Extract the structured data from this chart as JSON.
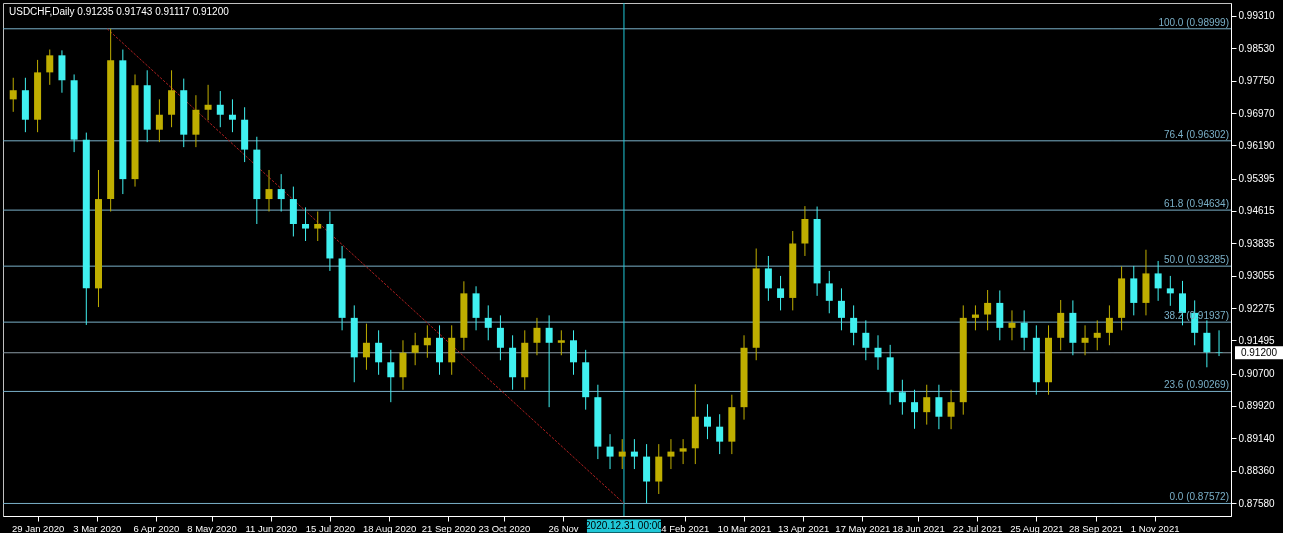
{
  "chart_data": {
    "type": "candlestick",
    "title": "USDCHF,Daily  0.91235 0.91743 0.91117 0.91200",
    "colors": [
      "#bfae00",
      "#40f0f0",
      "#bfae00",
      "#bfae00",
      "#40f0f0",
      "#40f0f0",
      "#40f0f0",
      "#bfae00",
      "#bfae00",
      "#40f0f0",
      "#bfae00",
      "#40f0f0",
      "#bfae00",
      "#bfae00",
      "#40f0f0",
      "#bfae00",
      "#bfae00",
      "#40f0f0",
      "#40f0f0",
      "#40f0f0",
      "#40f0f0",
      "#bfae00",
      "#40f0f0",
      "#40f0f0",
      "#40f0f0",
      "#bfae00",
      "#40f0f0",
      "#40f0f0",
      "#40f0f0",
      "#bfae00",
      "#40f0f0",
      "#40f0f0",
      "#bfae00",
      "#bfae00",
      "#bfae00",
      "#40f0f0",
      "#bfae00",
      "#bfae00",
      "#40f0f0",
      "#40f0f0",
      "#40f0f0",
      "#40f0f0",
      "#bfae00",
      "#bfae00",
      "#40f0f0",
      "#bfae00",
      "#40f0f0",
      "#40f0f0",
      "#40f0f0",
      "#40f0f0",
      "#bfae00",
      "#40f0f0",
      "#40f0f0",
      "#bfae00",
      "#bfae00",
      "#bfae00",
      "#bfae00",
      "#40f0f0",
      "#40f0f0",
      "#bfae00",
      "#bfae00",
      "#bfae00",
      "#40f0f0",
      "#40f0f0",
      "#bfae00",
      "#bfae00",
      "#40f0f0",
      "#40f0f0",
      "#40f0f0",
      "#40f0f0",
      "#40f0f0",
      "#40f0f0",
      "#40f0f0",
      "#40f0f0",
      "#40f0f0",
      "#bfae00",
      "#40f0f0",
      "#bfae00",
      "#bfae00",
      "#bfae00",
      "#bfae00",
      "#40f0f0",
      "#bfae00",
      "#40f0f0",
      "#40f0f0",
      "#bfae00",
      "#bfae00",
      "#40f0f0",
      "#bfae00",
      "#bfae00",
      "#bfae00",
      "#bfae00",
      "#40f0f0",
      "#bfae00",
      "#40f0f0",
      "#40f0f0",
      "#40f0f0",
      "#40f0f0",
      "#40f0f0",
      "#40f0f0"
    ],
    "x": [
      "2020-01-15",
      "2020-01-22",
      "2020-01-29",
      "2020-02-05",
      "2020-02-12",
      "2020-02-19",
      "2020-02-26",
      "2020-03-04",
      "2020-03-11",
      "2020-03-18",
      "2020-03-25",
      "2020-04-01",
      "2020-04-08",
      "2020-04-15",
      "2020-04-22",
      "2020-04-29",
      "2020-05-06",
      "2020-05-13",
      "2020-05-20",
      "2020-05-27",
      "2020-06-03",
      "2020-06-10",
      "2020-06-17",
      "2020-06-24",
      "2020-07-01",
      "2020-07-08",
      "2020-07-15",
      "2020-07-22",
      "2020-07-29",
      "2020-08-05",
      "2020-08-12",
      "2020-08-19",
      "2020-08-26",
      "2020-09-02",
      "2020-09-09",
      "2020-09-16",
      "2020-09-23",
      "2020-09-30",
      "2020-10-07",
      "2020-10-14",
      "2020-10-21",
      "2020-10-28",
      "2020-11-04",
      "2020-11-11",
      "2020-11-18",
      "2020-11-25",
      "2020-12-02",
      "2020-12-09",
      "2020-12-16",
      "2020-12-23",
      "2020-12-30",
      "2021-01-06",
      "2021-01-13",
      "2021-01-20",
      "2021-01-27",
      "2021-02-03",
      "2021-02-10",
      "2021-02-17",
      "2021-02-24",
      "2021-03-03",
      "2021-03-10",
      "2021-03-17",
      "2021-03-24",
      "2021-03-31",
      "2021-04-07",
      "2021-04-14",
      "2021-04-21",
      "2021-04-28",
      "2021-05-05",
      "2021-05-12",
      "2021-05-19",
      "2021-05-26",
      "2021-06-02",
      "2021-06-09",
      "2021-06-16",
      "2021-06-23",
      "2021-06-30",
      "2021-07-07",
      "2021-07-14",
      "2021-07-21",
      "2021-07-28",
      "2021-08-04",
      "2021-08-11",
      "2021-08-18",
      "2021-08-25",
      "2021-09-01",
      "2021-09-08",
      "2021-09-15",
      "2021-09-22",
      "2021-09-29",
      "2021-10-06",
      "2021-10-13",
      "2021-10-20",
      "2021-10-27",
      "2021-11-03",
      "2021-11-10",
      "2021-11-17",
      "2021-11-24",
      "2021-12-01",
      "2021-12-08"
    ],
    "ohlc": [
      [
        0.973,
        0.9782,
        0.97,
        0.9752
      ],
      [
        0.9752,
        0.9782,
        0.9651,
        0.9681
      ],
      [
        0.9681,
        0.9825,
        0.9651,
        0.9795
      ],
      [
        0.9795,
        0.985,
        0.9765,
        0.9836
      ],
      [
        0.9836,
        0.9848,
        0.9746,
        0.9776
      ],
      [
        0.9776,
        0.979,
        0.9603,
        0.9633
      ],
      [
        0.9633,
        0.965,
        0.9187,
        0.9275
      ],
      [
        0.9275,
        0.956,
        0.923,
        0.949
      ],
      [
        0.949,
        0.99,
        0.946,
        0.9824
      ],
      [
        0.9824,
        0.985,
        0.9502,
        0.9538
      ],
      [
        0.9538,
        0.979,
        0.952,
        0.9764
      ],
      [
        0.9764,
        0.98,
        0.9627,
        0.9657
      ],
      [
        0.9657,
        0.973,
        0.9627,
        0.9693
      ],
      [
        0.9693,
        0.98,
        0.9663,
        0.9752
      ],
      [
        0.9752,
        0.978,
        0.9615,
        0.9645
      ],
      [
        0.9645,
        0.974,
        0.9615,
        0.9705
      ],
      [
        0.9705,
        0.9765,
        0.968,
        0.9717
      ],
      [
        0.9717,
        0.975,
        0.9663,
        0.9693
      ],
      [
        0.9693,
        0.973,
        0.9651,
        0.9681
      ],
      [
        0.9681,
        0.9711,
        0.9579,
        0.9609
      ],
      [
        0.9609,
        0.964,
        0.943,
        0.949
      ],
      [
        0.949,
        0.956,
        0.946,
        0.9514
      ],
      [
        0.9514,
        0.955,
        0.946,
        0.949
      ],
      [
        0.949,
        0.952,
        0.94,
        0.943
      ],
      [
        0.943,
        0.947,
        0.9389,
        0.9419
      ],
      [
        0.9419,
        0.946,
        0.9389,
        0.943
      ],
      [
        0.943,
        0.946,
        0.9317,
        0.9347
      ],
      [
        0.9347,
        0.9377,
        0.9174,
        0.9204
      ],
      [
        0.9204,
        0.9234,
        0.9049,
        0.9109
      ],
      [
        0.9109,
        0.919,
        0.9079,
        0.9144
      ],
      [
        0.9144,
        0.9174,
        0.9067,
        0.9097
      ],
      [
        0.9097,
        0.9127,
        0.9001,
        0.9061
      ],
      [
        0.9061,
        0.915,
        0.9031,
        0.912
      ],
      [
        0.912,
        0.9168,
        0.909,
        0.9138
      ],
      [
        0.9138,
        0.9186,
        0.9108,
        0.9156
      ],
      [
        0.9156,
        0.9186,
        0.9067,
        0.9097
      ],
      [
        0.9097,
        0.9186,
        0.9067,
        0.9156
      ],
      [
        0.9156,
        0.9292,
        0.9126,
        0.9263
      ],
      [
        0.9263,
        0.928,
        0.9174,
        0.9204
      ],
      [
        0.9204,
        0.9234,
        0.915,
        0.918
      ],
      [
        0.918,
        0.921,
        0.9102,
        0.9132
      ],
      [
        0.9132,
        0.9162,
        0.9031,
        0.9061
      ],
      [
        0.9061,
        0.9174,
        0.9031,
        0.9144
      ],
      [
        0.9144,
        0.9204,
        0.9114,
        0.918
      ],
      [
        0.918,
        0.921,
        0.8989,
        0.9144
      ],
      [
        0.9144,
        0.9174,
        0.9114,
        0.915
      ],
      [
        0.915,
        0.9174,
        0.9067,
        0.9097
      ],
      [
        0.9097,
        0.9127,
        0.8983,
        0.9013
      ],
      [
        0.9013,
        0.9043,
        0.8864,
        0.8894
      ],
      [
        0.8894,
        0.8924,
        0.884,
        0.887
      ],
      [
        0.887,
        0.8912,
        0.884,
        0.8882
      ],
      [
        0.8882,
        0.8912,
        0.884,
        0.887
      ],
      [
        0.887,
        0.89,
        0.8758,
        0.881
      ],
      [
        0.881,
        0.89,
        0.878,
        0.887
      ],
      [
        0.887,
        0.8912,
        0.884,
        0.8882
      ],
      [
        0.8882,
        0.8912,
        0.8852,
        0.889
      ],
      [
        0.889,
        0.9044,
        0.8852,
        0.8966
      ],
      [
        0.8966,
        0.8996,
        0.8912,
        0.8942
      ],
      [
        0.8942,
        0.8972,
        0.8876,
        0.8906
      ],
      [
        0.8906,
        0.9019,
        0.8876,
        0.8989
      ],
      [
        0.8989,
        0.9162,
        0.8959,
        0.9132
      ],
      [
        0.9132,
        0.9371,
        0.9102,
        0.9323
      ],
      [
        0.9323,
        0.9353,
        0.9245,
        0.9275
      ],
      [
        0.9275,
        0.9305,
        0.9222,
        0.9252
      ],
      [
        0.9252,
        0.9413,
        0.9222,
        0.9383
      ],
      [
        0.9383,
        0.9473,
        0.9353,
        0.9442
      ],
      [
        0.9442,
        0.9472,
        0.9257,
        0.9287
      ],
      [
        0.9287,
        0.9317,
        0.9215,
        0.9245
      ],
      [
        0.9245,
        0.9275,
        0.9174,
        0.9204
      ],
      [
        0.9204,
        0.9234,
        0.9138,
        0.9168
      ],
      [
        0.9168,
        0.9198,
        0.9102,
        0.9132
      ],
      [
        0.9132,
        0.9162,
        0.9079,
        0.9109
      ],
      [
        0.9109,
        0.9139,
        0.8995,
        0.9025
      ],
      [
        0.9025,
        0.9055,
        0.8971,
        0.9001
      ],
      [
        0.9001,
        0.9031,
        0.8937,
        0.8977
      ],
      [
        0.8977,
        0.9043,
        0.8947,
        0.9013
      ],
      [
        0.9013,
        0.9043,
        0.8936,
        0.8966
      ],
      [
        0.8966,
        0.9031,
        0.8936,
        0.9001
      ],
      [
        0.9001,
        0.9234,
        0.8971,
        0.9204
      ],
      [
        0.9204,
        0.9234,
        0.9174,
        0.9212
      ],
      [
        0.9212,
        0.9271,
        0.9174,
        0.924
      ],
      [
        0.924,
        0.927,
        0.915,
        0.918
      ],
      [
        0.918,
        0.9222,
        0.915,
        0.9192
      ],
      [
        0.9192,
        0.9222,
        0.9126,
        0.9156
      ],
      [
        0.9156,
        0.9186,
        0.9019,
        0.9049
      ],
      [
        0.9049,
        0.9186,
        0.9019,
        0.9156
      ],
      [
        0.9156,
        0.9247,
        0.9126,
        0.9216
      ],
      [
        0.9216,
        0.9246,
        0.9114,
        0.9144
      ],
      [
        0.9144,
        0.9186,
        0.9114,
        0.9156
      ],
      [
        0.9156,
        0.9198,
        0.9126,
        0.9168
      ],
      [
        0.9168,
        0.9234,
        0.9138,
        0.9204
      ],
      [
        0.9204,
        0.9328,
        0.9174,
        0.9299
      ],
      [
        0.9299,
        0.9329,
        0.921,
        0.924
      ],
      [
        0.924,
        0.9368,
        0.921,
        0.9311
      ],
      [
        0.9311,
        0.9341,
        0.9245,
        0.9275
      ],
      [
        0.9275,
        0.9305,
        0.9233,
        0.9263
      ],
      [
        0.9263,
        0.9293,
        0.9186,
        0.9216
      ],
      [
        0.9216,
        0.9246,
        0.9138,
        0.9168
      ],
      [
        0.9168,
        0.9198,
        0.9085,
        0.9121
      ],
      [
        0.9121,
        0.9174,
        0.9112,
        0.912
      ]
    ],
    "series": [
      {
        "type": "line",
        "x": [
          "2020-03-09",
          "2020-12-31"
        ],
        "values": [
          0.98999,
          0.87572
        ],
        "color": "#b02020",
        "line_style": "dotted"
      }
    ],
    "ref_lines": [
      {
        "axis": "y",
        "value": 0.98999,
        "label": "100.0 (0.98999)",
        "color": "#7ab0c8"
      },
      {
        "axis": "y",
        "value": 0.96302,
        "label": "76.4 (0.96302)",
        "color": "#7ab0c8"
      },
      {
        "axis": "y",
        "value": 0.94634,
        "label": "61.8 (0.94634)",
        "color": "#7ab0c8"
      },
      {
        "axis": "y",
        "value": 0.93285,
        "label": "50.0 (0.93285)",
        "color": "#7ab0c8"
      },
      {
        "axis": "y",
        "value": 0.91937,
        "label": "38.2 (0.91937)",
        "color": "#7ab0c8"
      },
      {
        "axis": "y",
        "value": 0.90269,
        "label": "23.6 (0.90269)",
        "color": "#7ab0c8"
      },
      {
        "axis": "y",
        "value": 0.87572,
        "label": "0.0 (0.87572)",
        "color": "#7ab0c8"
      },
      {
        "axis": "y",
        "value": 0.912,
        "label": "0.91200",
        "color": "#8a9aa4"
      },
      {
        "axis": "x",
        "value": "2020-12-31",
        "label": "2020.12.31 00:00",
        "color": "#20c8d8"
      }
    ],
    "xlim": [
      "2020-01-12",
      "2021-12-12"
    ],
    "xticks": [
      {
        "value": "2020-01-29",
        "label": "29 Jan 2020"
      },
      {
        "value": "2020-03-03",
        "label": "3 Mar 2020"
      },
      {
        "value": "2020-04-06",
        "label": "6 Apr 2020"
      },
      {
        "value": "2020-05-08",
        "label": "8 May 2020"
      },
      {
        "value": "2020-06-11",
        "label": "11 Jun 2020"
      },
      {
        "value": "2020-07-15",
        "label": "15 Jul 2020"
      },
      {
        "value": "2020-08-18",
        "label": "18 Aug 2020"
      },
      {
        "value": "2020-09-21",
        "label": "21 Sep 2020"
      },
      {
        "value": "2020-10-23",
        "label": "23 Oct 2020"
      },
      {
        "value": "2020-11-26",
        "label": "26 Nov"
      },
      {
        "value": "2021-02-04",
        "label": "4 Feb 2021"
      },
      {
        "value": "2021-03-10",
        "label": "10 Mar 2021"
      },
      {
        "value": "2021-04-13",
        "label": "13 Apr 2021"
      },
      {
        "value": "2021-05-17",
        "label": "17 May 2021"
      },
      {
        "value": "2021-06-18",
        "label": "18 Jun 2021"
      },
      {
        "value": "2021-07-22",
        "label": "22 Jul 2021"
      },
      {
        "value": "2021-08-25",
        "label": "25 Aug 2021"
      },
      {
        "value": "2021-09-28",
        "label": "28 Sep 2021"
      },
      {
        "value": "2021-11-01",
        "label": "1 Nov 2021"
      }
    ],
    "ylim": [
      0.8727,
      0.9962
    ],
    "yticks": [
      {
        "value": 0.9931,
        "label": "0.99310"
      },
      {
        "value": 0.9853,
        "label": "0.98530"
      },
      {
        "value": 0.9775,
        "label": "0.97750"
      },
      {
        "value": 0.9697,
        "label": "0.96970"
      },
      {
        "value": 0.9619,
        "label": "0.96190"
      },
      {
        "value": 0.95395,
        "label": "0.95395"
      },
      {
        "value": 0.94615,
        "label": "0.94615"
      },
      {
        "value": 0.93835,
        "label": "0.93835"
      },
      {
        "value": 0.93055,
        "label": "0.93055"
      },
      {
        "value": 0.92275,
        "label": "0.92275"
      },
      {
        "value": 0.91495,
        "label": "0.91495"
      },
      {
        "value": 0.907,
        "label": "0.90700"
      },
      {
        "value": 0.8992,
        "label": "0.89920"
      },
      {
        "value": 0.8914,
        "label": "0.89140"
      },
      {
        "value": 0.8836,
        "label": "0.88360"
      },
      {
        "value": 0.8758,
        "label": "0.87580"
      }
    ]
  }
}
